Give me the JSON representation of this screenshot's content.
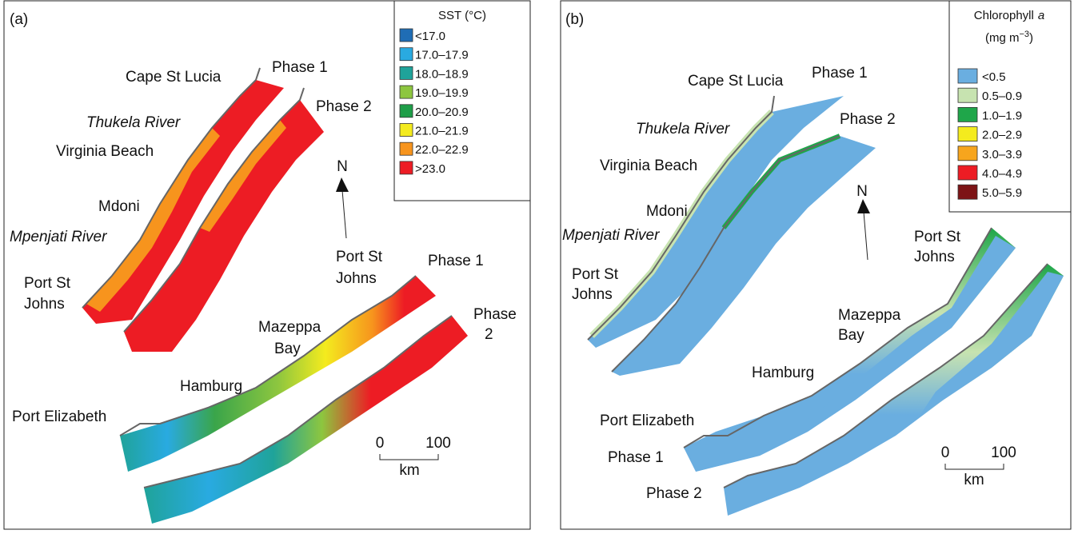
{
  "panels": [
    {
      "label": "(a)",
      "legend": {
        "title": [
          "SST (°C)"
        ],
        "items": [
          {
            "label": "<17.0",
            "color": "#1f6db5"
          },
          {
            "label": "17.0–17.9",
            "color": "#29aae1"
          },
          {
            "label": "18.0–18.9",
            "color": "#1fa39a"
          },
          {
            "label": "19.0–19.9",
            "color": "#8dc63f"
          },
          {
            "label": "20.0–20.9",
            "color": "#1e9e48"
          },
          {
            "label": "21.0–21.9",
            "color": "#f4eb1e"
          },
          {
            "label": "22.0–22.9",
            "color": "#f7941d"
          },
          {
            "label": ">23.0",
            "color": "#ed1c24"
          }
        ]
      },
      "places": [
        "Cape St Lucia",
        "Phase 1",
        "Thukela River",
        "Phase 2",
        "Virginia Beach",
        "Mdoni",
        "Mpenjati River",
        "Port St",
        "Johns",
        "Port St",
        "Johns",
        "Phase 1",
        "Mazeppa",
        "Bay",
        "Phase",
        "2",
        "Hamburg",
        "Port Elizabeth"
      ],
      "north": "N",
      "scale": {
        "start": 0,
        "end": 100,
        "unit": "km"
      }
    },
    {
      "label": "(b)",
      "legend": {
        "title": [
          "Chlorophyll",
          "a",
          "(mg m",
          "−3",
          ")"
        ],
        "items": [
          {
            "label": "<0.5",
            "color": "#6aaee0"
          },
          {
            "label": "0.5–0.9",
            "color": "#c7e3b0"
          },
          {
            "label": "1.0–1.9",
            "color": "#1fa64a"
          },
          {
            "label": "2.0–2.9",
            "color": "#f4eb1e"
          },
          {
            "label": "3.0–3.9",
            "color": "#f7a51d"
          },
          {
            "label": "4.0–4.9",
            "color": "#ed1c24"
          },
          {
            "label": "5.0–5.9",
            "color": "#7d1416"
          }
        ]
      },
      "places": [
        "Cape St Lucia",
        "Phase 1",
        "Thukela River",
        "Phase 2",
        "Virginia Beach",
        "Mdoni",
        "Mpenjati River",
        "Port St",
        "Johns",
        "Port St",
        "Johns",
        "Mazeppa",
        "Bay",
        "Hamburg",
        "Port Elizabeth",
        "Phase 1",
        "Phase 2"
      ],
      "north": "N",
      "scale": {
        "start": 0,
        "end": 100,
        "unit": "km"
      }
    }
  ]
}
